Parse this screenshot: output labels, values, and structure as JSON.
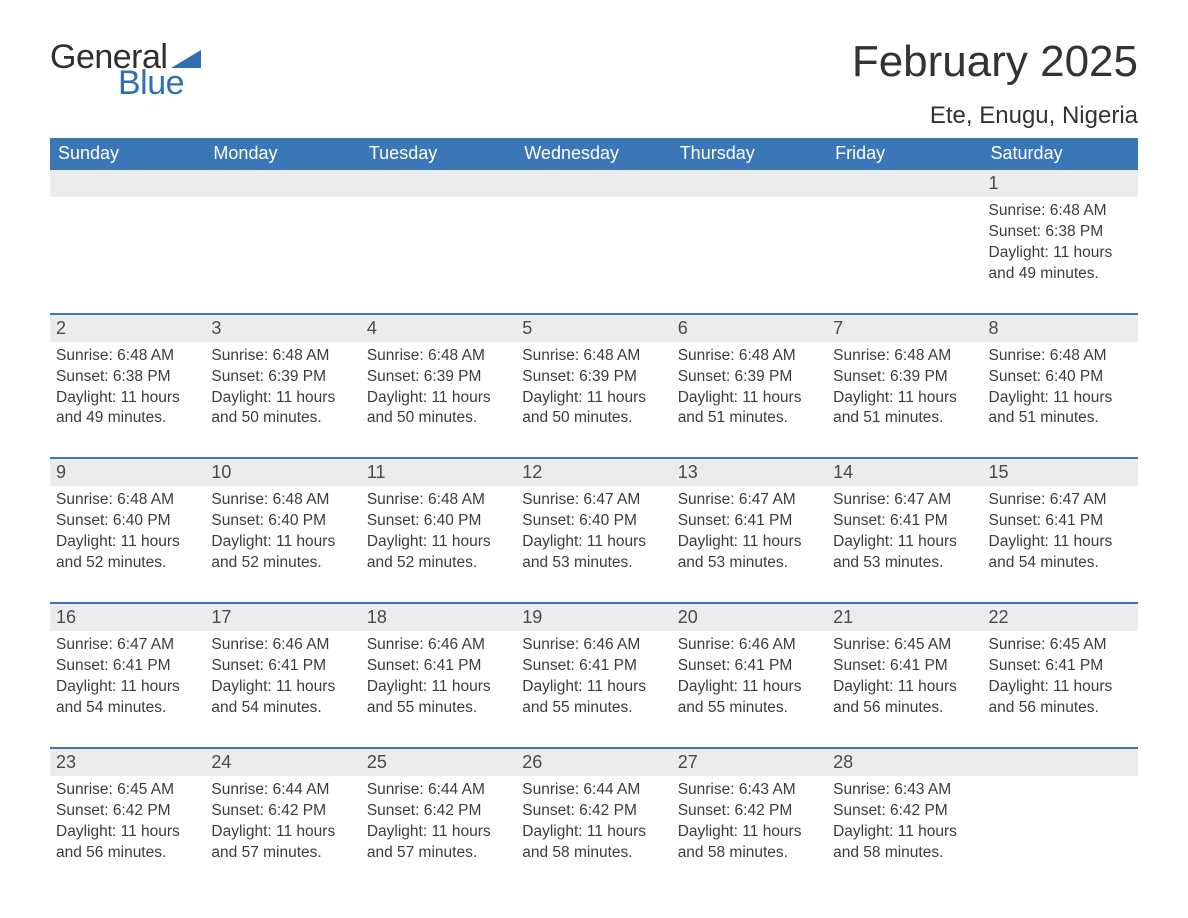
{
  "logo": {
    "text_general": "General",
    "text_blue": "Blue",
    "triangle_color": "#2f6fb0"
  },
  "title": {
    "month": "February 2025",
    "location": "Ete, Enugu, Nigeria"
  },
  "colors": {
    "header_bg": "#3b77b7",
    "header_text": "#ffffff",
    "daynum_bg": "#ececec",
    "row_divider": "#3b77b7",
    "body_text": "#3c3c3c",
    "page_bg": "#ffffff"
  },
  "typography": {
    "month_title_size_pt": 33,
    "location_size_pt": 18,
    "weekday_size_pt": 14,
    "daynum_size_pt": 14,
    "body_size_pt": 12,
    "font_family": "Arial"
  },
  "weekdays": [
    "Sunday",
    "Monday",
    "Tuesday",
    "Wednesday",
    "Thursday",
    "Friday",
    "Saturday"
  ],
  "weeks": [
    [
      null,
      null,
      null,
      null,
      null,
      null,
      {
        "n": "1",
        "sunrise": "Sunrise: 6:48 AM",
        "sunset": "Sunset: 6:38 PM",
        "daylight": "Daylight: 11 hours and 49 minutes."
      }
    ],
    [
      {
        "n": "2",
        "sunrise": "Sunrise: 6:48 AM",
        "sunset": "Sunset: 6:38 PM",
        "daylight": "Daylight: 11 hours and 49 minutes."
      },
      {
        "n": "3",
        "sunrise": "Sunrise: 6:48 AM",
        "sunset": "Sunset: 6:39 PM",
        "daylight": "Daylight: 11 hours and 50 minutes."
      },
      {
        "n": "4",
        "sunrise": "Sunrise: 6:48 AM",
        "sunset": "Sunset: 6:39 PM",
        "daylight": "Daylight: 11 hours and 50 minutes."
      },
      {
        "n": "5",
        "sunrise": "Sunrise: 6:48 AM",
        "sunset": "Sunset: 6:39 PM",
        "daylight": "Daylight: 11 hours and 50 minutes."
      },
      {
        "n": "6",
        "sunrise": "Sunrise: 6:48 AM",
        "sunset": "Sunset: 6:39 PM",
        "daylight": "Daylight: 11 hours and 51 minutes."
      },
      {
        "n": "7",
        "sunrise": "Sunrise: 6:48 AM",
        "sunset": "Sunset: 6:39 PM",
        "daylight": "Daylight: 11 hours and 51 minutes."
      },
      {
        "n": "8",
        "sunrise": "Sunrise: 6:48 AM",
        "sunset": "Sunset: 6:40 PM",
        "daylight": "Daylight: 11 hours and 51 minutes."
      }
    ],
    [
      {
        "n": "9",
        "sunrise": "Sunrise: 6:48 AM",
        "sunset": "Sunset: 6:40 PM",
        "daylight": "Daylight: 11 hours and 52 minutes."
      },
      {
        "n": "10",
        "sunrise": "Sunrise: 6:48 AM",
        "sunset": "Sunset: 6:40 PM",
        "daylight": "Daylight: 11 hours and 52 minutes."
      },
      {
        "n": "11",
        "sunrise": "Sunrise: 6:48 AM",
        "sunset": "Sunset: 6:40 PM",
        "daylight": "Daylight: 11 hours and 52 minutes."
      },
      {
        "n": "12",
        "sunrise": "Sunrise: 6:47 AM",
        "sunset": "Sunset: 6:40 PM",
        "daylight": "Daylight: 11 hours and 53 minutes."
      },
      {
        "n": "13",
        "sunrise": "Sunrise: 6:47 AM",
        "sunset": "Sunset: 6:41 PM",
        "daylight": "Daylight: 11 hours and 53 minutes."
      },
      {
        "n": "14",
        "sunrise": "Sunrise: 6:47 AM",
        "sunset": "Sunset: 6:41 PM",
        "daylight": "Daylight: 11 hours and 53 minutes."
      },
      {
        "n": "15",
        "sunrise": "Sunrise: 6:47 AM",
        "sunset": "Sunset: 6:41 PM",
        "daylight": "Daylight: 11 hours and 54 minutes."
      }
    ],
    [
      {
        "n": "16",
        "sunrise": "Sunrise: 6:47 AM",
        "sunset": "Sunset: 6:41 PM",
        "daylight": "Daylight: 11 hours and 54 minutes."
      },
      {
        "n": "17",
        "sunrise": "Sunrise: 6:46 AM",
        "sunset": "Sunset: 6:41 PM",
        "daylight": "Daylight: 11 hours and 54 minutes."
      },
      {
        "n": "18",
        "sunrise": "Sunrise: 6:46 AM",
        "sunset": "Sunset: 6:41 PM",
        "daylight": "Daylight: 11 hours and 55 minutes."
      },
      {
        "n": "19",
        "sunrise": "Sunrise: 6:46 AM",
        "sunset": "Sunset: 6:41 PM",
        "daylight": "Daylight: 11 hours and 55 minutes."
      },
      {
        "n": "20",
        "sunrise": "Sunrise: 6:46 AM",
        "sunset": "Sunset: 6:41 PM",
        "daylight": "Daylight: 11 hours and 55 minutes."
      },
      {
        "n": "21",
        "sunrise": "Sunrise: 6:45 AM",
        "sunset": "Sunset: 6:41 PM",
        "daylight": "Daylight: 11 hours and 56 minutes."
      },
      {
        "n": "22",
        "sunrise": "Sunrise: 6:45 AM",
        "sunset": "Sunset: 6:41 PM",
        "daylight": "Daylight: 11 hours and 56 minutes."
      }
    ],
    [
      {
        "n": "23",
        "sunrise": "Sunrise: 6:45 AM",
        "sunset": "Sunset: 6:42 PM",
        "daylight": "Daylight: 11 hours and 56 minutes."
      },
      {
        "n": "24",
        "sunrise": "Sunrise: 6:44 AM",
        "sunset": "Sunset: 6:42 PM",
        "daylight": "Daylight: 11 hours and 57 minutes."
      },
      {
        "n": "25",
        "sunrise": "Sunrise: 6:44 AM",
        "sunset": "Sunset: 6:42 PM",
        "daylight": "Daylight: 11 hours and 57 minutes."
      },
      {
        "n": "26",
        "sunrise": "Sunrise: 6:44 AM",
        "sunset": "Sunset: 6:42 PM",
        "daylight": "Daylight: 11 hours and 58 minutes."
      },
      {
        "n": "27",
        "sunrise": "Sunrise: 6:43 AM",
        "sunset": "Sunset: 6:42 PM",
        "daylight": "Daylight: 11 hours and 58 minutes."
      },
      {
        "n": "28",
        "sunrise": "Sunrise: 6:43 AM",
        "sunset": "Sunset: 6:42 PM",
        "daylight": "Daylight: 11 hours and 58 minutes."
      },
      null
    ]
  ]
}
